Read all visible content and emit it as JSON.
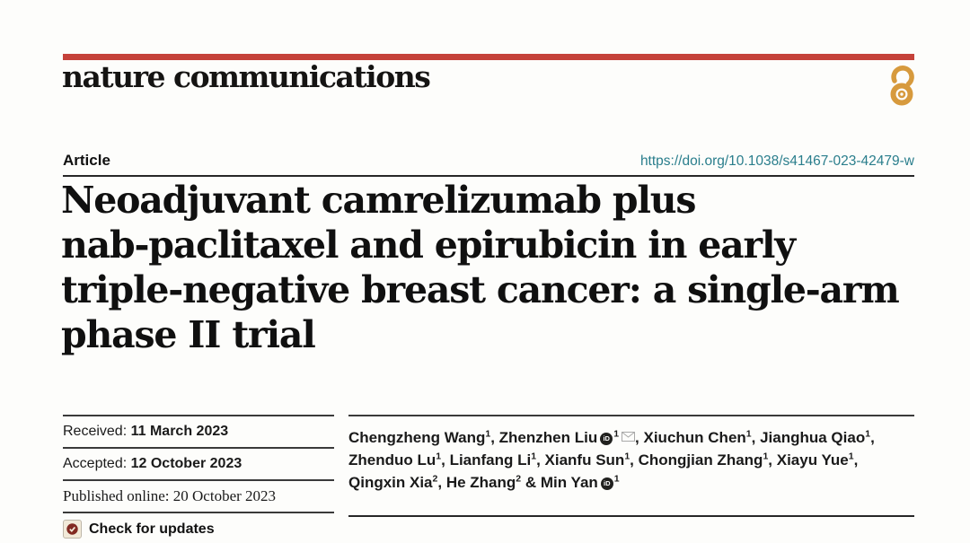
{
  "masthead": {
    "journal_wordmark": "nature communications",
    "bar_color": "#c5423a",
    "open_access_color": "#d79a3d"
  },
  "article": {
    "type_label": "Article",
    "doi": "https://doi.org/10.1038/s41467-023-42479-w",
    "doi_color": "#2a7e8c"
  },
  "title": {
    "lines": [
      "Neoadjuvant camrelizumab plus",
      "nab-paclitaxel and epirubicin in early",
      "triple-negative breast cancer: a single-arm",
      "phase II trial"
    ]
  },
  "history": {
    "received": {
      "label": "Received:",
      "value": "11 March 2023"
    },
    "accepted": {
      "label": "Accepted:",
      "value": "12 October 2023"
    },
    "published": {
      "text": "Published online: 20 October 2023"
    }
  },
  "check_updates": {
    "label": "Check for updates"
  },
  "icons": {
    "orcid_text": "iD"
  },
  "authors": {
    "list": [
      {
        "name": "Chengzheng Wang",
        "sup": "1",
        "sep": ", "
      },
      {
        "name": "Zhenzhen Liu",
        "orcid": true,
        "sup": "1",
        "envelope": true,
        "sep": ", "
      },
      {
        "name": "Xiuchun Chen",
        "sup": "1",
        "sep": ", "
      },
      {
        "name": "Jianghua Qiao",
        "sup": "1",
        "sep": ",",
        "break": true
      },
      {
        "name": "Zhenduo Lu",
        "sup": "1",
        "sep": ", "
      },
      {
        "name": "Lianfang Li",
        "sup": "1",
        "sep": ", "
      },
      {
        "name": "Xianfu Sun",
        "sup": "1",
        "sep": ", "
      },
      {
        "name": "Chongjian Zhang",
        "sup": "1",
        "sep": ", "
      },
      {
        "name": "Xiayu Yue",
        "sup": "1",
        "sep": ",",
        "break": true
      },
      {
        "name": "Qingxin Xia",
        "sup": "2",
        "sep": ", "
      },
      {
        "name": "He Zhang",
        "sup": "2",
        "sep": " & "
      },
      {
        "name": "Min Yan",
        "orcid": true,
        "sup": "1",
        "sep": ""
      }
    ]
  }
}
